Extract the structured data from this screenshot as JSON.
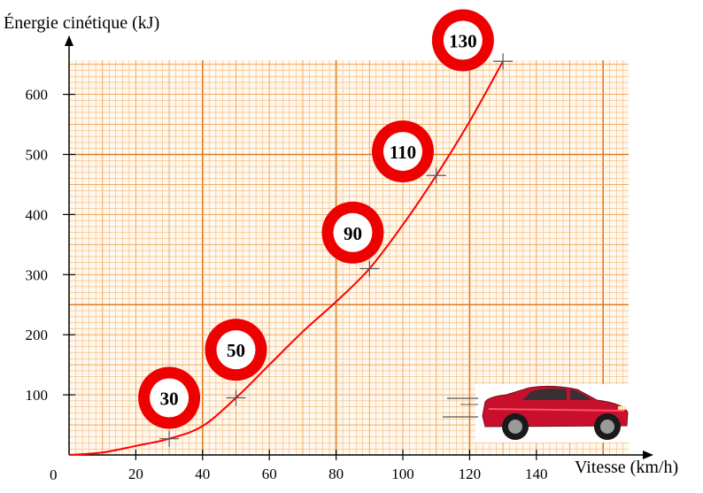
{
  "chart_data": {
    "type": "line",
    "ylabel": "Énergie cinétique (kJ)",
    "xlabel": "Vitesse (km/h)",
    "origin_label": "0",
    "xlim": [
      0,
      155
    ],
    "ylim": [
      0,
      655
    ],
    "x_ticks": [
      20,
      40,
      60,
      80,
      100,
      120,
      140
    ],
    "y_ticks": [
      100,
      200,
      300,
      400,
      500,
      600
    ],
    "grid": true,
    "grid_minor_x": 2,
    "grid_minor_y": 10,
    "grid_color": "#f0a050",
    "grid_major_color": "#e07b20",
    "curve_color": "#ff0000",
    "series": [
      {
        "x": [
          0,
          10,
          20,
          30,
          40,
          50,
          60,
          70,
          80,
          90,
          100,
          110,
          120,
          130
        ],
        "y": [
          0,
          4,
          15,
          27,
          48,
          95,
          150,
          205,
          255,
          310,
          383,
          465,
          555,
          655
        ]
      }
    ],
    "marked_points": [
      {
        "x": 30,
        "y": 27
      },
      {
        "x": 50,
        "y": 95
      },
      {
        "x": 90,
        "y": 310
      },
      {
        "x": 110,
        "y": 465
      },
      {
        "x": 130,
        "y": 655
      }
    ],
    "speed_signs": [
      {
        "label": "30",
        "x": 30,
        "y": 95
      },
      {
        "label": "50",
        "x": 50,
        "y": 175
      },
      {
        "label": "90",
        "x": 85,
        "y": 370
      },
      {
        "label": "110",
        "x": 100,
        "y": 505
      },
      {
        "label": "130",
        "x": 118,
        "y": 690
      }
    ],
    "sign_color": "#ee0000"
  }
}
